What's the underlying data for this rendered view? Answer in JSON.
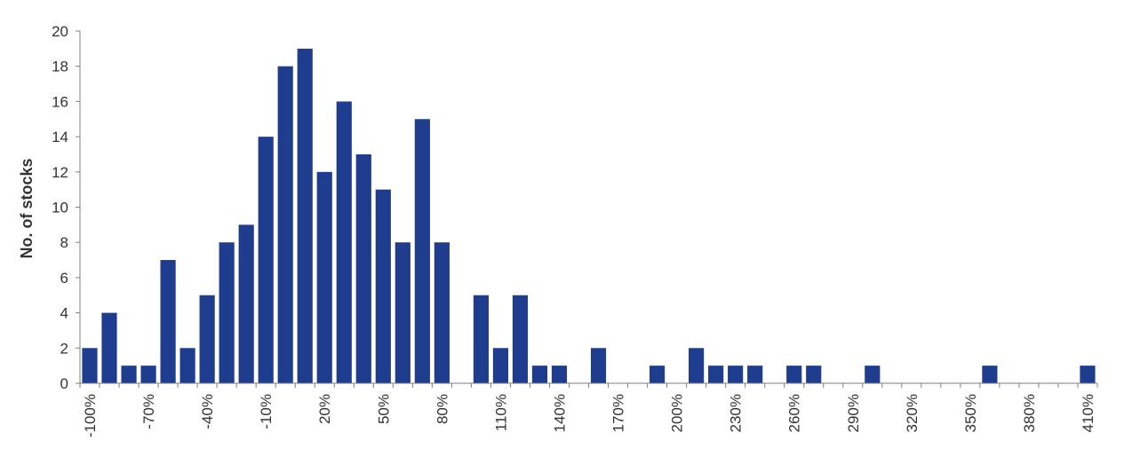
{
  "chart_data": {
    "type": "bar",
    "title": "",
    "xlabel": "",
    "ylabel": "No. of stocks",
    "ylim": [
      0,
      20
    ],
    "yticks": [
      0,
      2,
      4,
      6,
      8,
      10,
      12,
      14,
      16,
      18,
      20
    ],
    "xlim": [
      -105,
      415
    ],
    "bin_width": 10,
    "xtick_values": [
      -100,
      -70,
      -40,
      -10,
      20,
      50,
      80,
      110,
      140,
      170,
      200,
      230,
      260,
      290,
      320,
      350,
      380,
      410
    ],
    "xtick_labels": [
      "-100%",
      "-70%",
      "-40%",
      "-10%",
      "20%",
      "50%",
      "80%",
      "110%",
      "140%",
      "170%",
      "200%",
      "230%",
      "260%",
      "290%",
      "320%",
      "350%",
      "380%",
      "410%"
    ],
    "x": [
      -100,
      -90,
      -80,
      -70,
      -60,
      -50,
      -40,
      -30,
      -20,
      -10,
      0,
      10,
      20,
      30,
      40,
      50,
      60,
      70,
      80,
      90,
      100,
      110,
      120,
      130,
      140,
      150,
      160,
      170,
      180,
      190,
      200,
      210,
      220,
      230,
      240,
      250,
      260,
      270,
      280,
      290,
      300,
      310,
      320,
      330,
      340,
      350,
      360,
      370,
      380,
      390,
      400,
      410
    ],
    "values": [
      2,
      4,
      1,
      1,
      7,
      2,
      5,
      8,
      9,
      14,
      18,
      19,
      12,
      16,
      13,
      11,
      8,
      15,
      8,
      0,
      5,
      2,
      5,
      1,
      1,
      0,
      2,
      0,
      0,
      1,
      0,
      2,
      1,
      1,
      1,
      0,
      1,
      1,
      0,
      0,
      1,
      0,
      0,
      0,
      0,
      0,
      1,
      0,
      0,
      0,
      0,
      1
    ],
    "grid": false,
    "bar_color": "#1f3d8f",
    "axis_color": "#7f7f7f"
  }
}
